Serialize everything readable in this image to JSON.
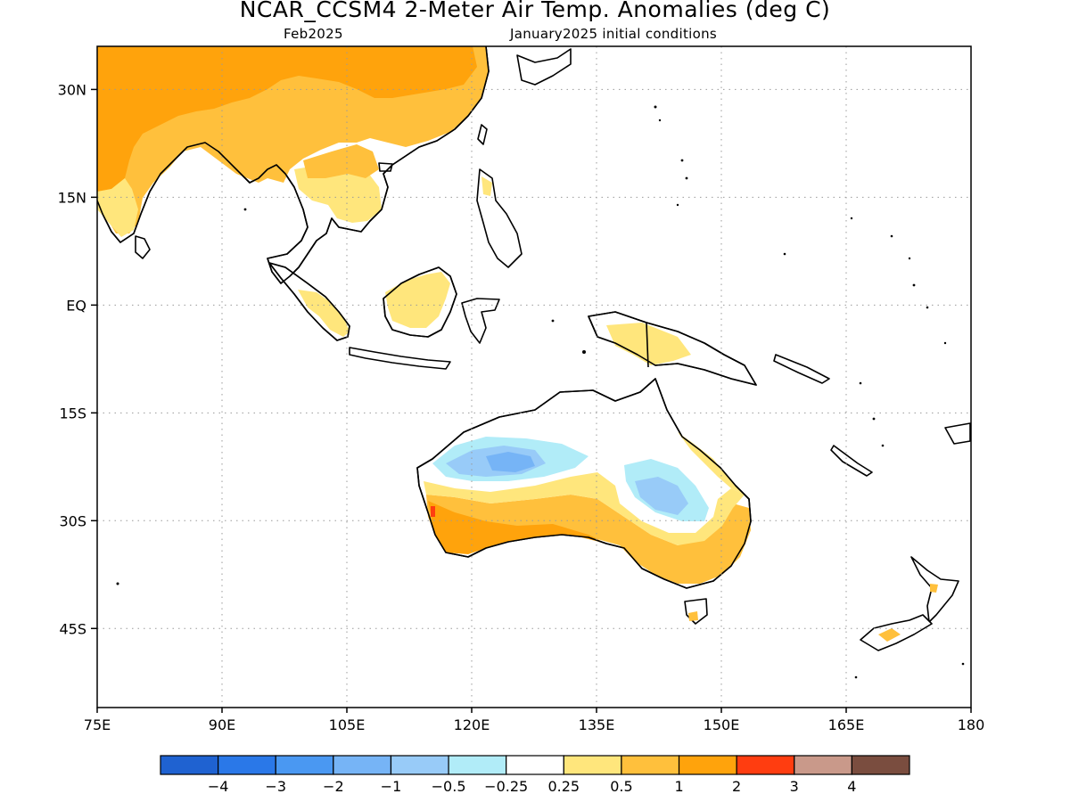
{
  "header": {
    "title": "NCAR_CCSM4 2-Meter Air Temp. Anomalies (deg C)",
    "valid_month": "Feb2025",
    "init_conditions": "January2025 initial conditions"
  },
  "map": {
    "lon_range": [
      75,
      180
    ],
    "lat_range": [
      -56,
      36
    ],
    "lon_ticks": [
      {
        "v": 75,
        "label": "75E"
      },
      {
        "v": 90,
        "label": "90E"
      },
      {
        "v": 105,
        "label": "105E"
      },
      {
        "v": 120,
        "label": "120E"
      },
      {
        "v": 135,
        "label": "135E"
      },
      {
        "v": 150,
        "label": "150E"
      },
      {
        "v": 165,
        "label": "165E"
      },
      {
        "v": 180,
        "label": "180"
      }
    ],
    "lat_ticks": [
      {
        "v": 30,
        "label": "30N"
      },
      {
        "v": 15,
        "label": "15N"
      },
      {
        "v": 0,
        "label": "EQ"
      },
      {
        "v": -15,
        "label": "15S"
      },
      {
        "v": -30,
        "label": "30S"
      },
      {
        "v": -45,
        "label": "45S"
      }
    ]
  },
  "colorbar": {
    "colors": [
      "#1f62d1",
      "#2a78e8",
      "#4a98f2",
      "#76b4f6",
      "#98cbf8",
      "#b1ecf8",
      "#ffffff",
      "#ffe67c",
      "#ffc03c",
      "#ffa30c",
      "#ff3d10",
      "#c9998a",
      "#7a4d3f"
    ],
    "labels": [
      "-4",
      "-3",
      "-2",
      "-1",
      "-0.5",
      "-0.25",
      "0.25",
      "0.5",
      "1",
      "2",
      "3",
      "4"
    ]
  }
}
